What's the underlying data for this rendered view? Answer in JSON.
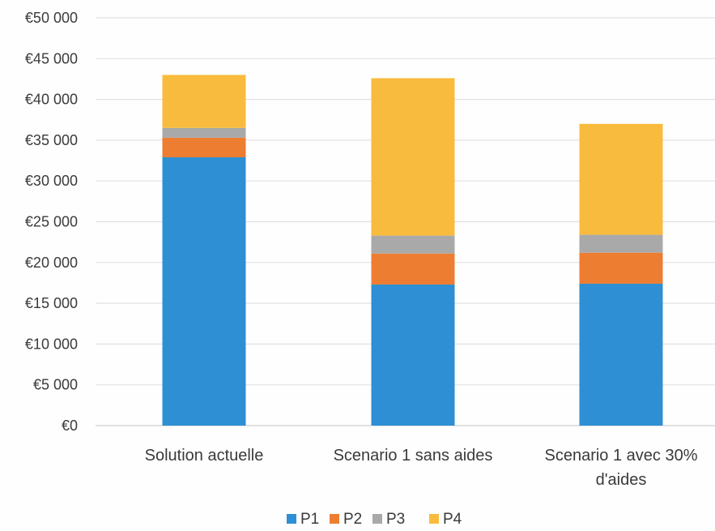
{
  "chart_data": {
    "type": "bar",
    "stacked": true,
    "categories": [
      [
        "Solution actuelle"
      ],
      [
        "Scenario 1 sans aides"
      ],
      [
        "Scenario 1 avec 30%",
        "d'aides"
      ]
    ],
    "series": [
      {
        "name": "P1",
        "color": "#2e8fd4",
        "values": [
          32900,
          17300,
          17400
        ]
      },
      {
        "name": "P2",
        "color": "#ed7d31",
        "values": [
          2400,
          3800,
          3800
        ]
      },
      {
        "name": "P3",
        "color": "#a9a9a9",
        "values": [
          1200,
          2200,
          2200
        ]
      },
      {
        "name": "P4",
        "color": "#f9bb3d",
        "values": [
          6500,
          19300,
          13600
        ]
      }
    ],
    "ylim": [
      0,
      50000
    ],
    "yticks": [
      0,
      5000,
      10000,
      15000,
      20000,
      25000,
      30000,
      35000,
      40000,
      45000,
      50000
    ],
    "ytick_labels": [
      "€0",
      "€5 000",
      "€10 000",
      "€15 000",
      "€20 000",
      "€25 000",
      "€30 000",
      "€35 000",
      "€40 000",
      "€45 000",
      "€50 000"
    ],
    "grid": true,
    "legend_position": "bottom",
    "title": "",
    "xlabel": "",
    "ylabel": ""
  }
}
